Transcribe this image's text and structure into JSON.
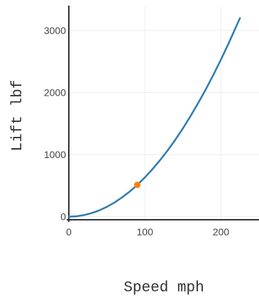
{
  "chart_data": {
    "type": "line",
    "title": "",
    "xlabel": "Speed mph",
    "ylabel": "Lift lbf",
    "xlim": [
      0,
      250
    ],
    "ylim": [
      -50,
      3400
    ],
    "x_ticks": [
      0,
      100,
      200
    ],
    "y_ticks": [
      0,
      1000,
      2000,
      3000
    ],
    "x_tick_labels": [
      "0",
      "100",
      "200"
    ],
    "y_tick_labels": [
      "0",
      "1000",
      "2000",
      "3000"
    ],
    "grid": true,
    "legend": "none",
    "series": [
      {
        "x": [
          0,
          10,
          20,
          30,
          40,
          50,
          60,
          70,
          80,
          90,
          100,
          110,
          120,
          130,
          140,
          150,
          160,
          170,
          180,
          190,
          200,
          210,
          220,
          225
        ],
        "y": [
          0,
          6,
          25,
          57,
          101,
          158,
          228,
          310,
          405,
          512,
          633,
          766,
          911,
          1069,
          1240,
          1424,
          1620,
          1829,
          2051,
          2285,
          2532,
          2791,
          3063,
          3200
        ],
        "color": "#2e7bb0"
      }
    ],
    "highlight_point": {
      "x": 90,
      "y": 512,
      "color": "#ff7f0e"
    }
  }
}
